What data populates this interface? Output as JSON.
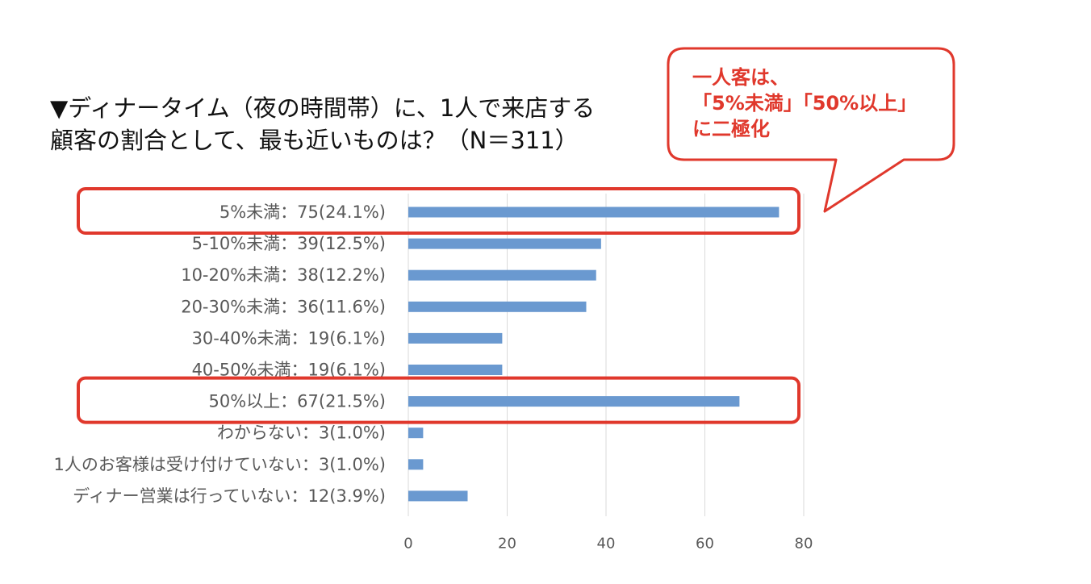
{
  "title": {
    "line1": "▼ディナータイム（夜の時間帯）に、1人で来店する",
    "line2": "顧客の割合として、最も近いものは？（N＝311）"
  },
  "callout": {
    "line1": "一人客は、",
    "line2": "「5%未満」「50%以上」",
    "line3": "に二極化",
    "color": "#e0382c"
  },
  "colors": {
    "bar": "#6a99d0",
    "grid": "#d9d9d9",
    "axis_text": "#595959",
    "highlight": "#e0382c"
  },
  "chart_data": {
    "type": "bar",
    "orientation": "horizontal",
    "categories": [
      "5%未満：75(24.1%)",
      "5-10%未満：39(12.5%)",
      "10-20%未満：38(12.2%)",
      "20-30%未満：36(11.6%)",
      "30-40%未満：19(6.1%)",
      "40-50%未満：19(6.1%)",
      "50%以上：67(21.5%)",
      "わからない：3(1.0%)",
      "1人のお客様は受け付けていない：3(1.0%)",
      "ディナー営業は行っていない：12(3.9%)"
    ],
    "values": [
      75,
      39,
      38,
      36,
      19,
      19,
      67,
      3,
      3,
      12
    ],
    "xlim": [
      0,
      80
    ],
    "xticks": [
      "0",
      "20",
      "40",
      "60",
      "80"
    ],
    "grid": true,
    "highlighted_categories": [
      0,
      6
    ]
  }
}
